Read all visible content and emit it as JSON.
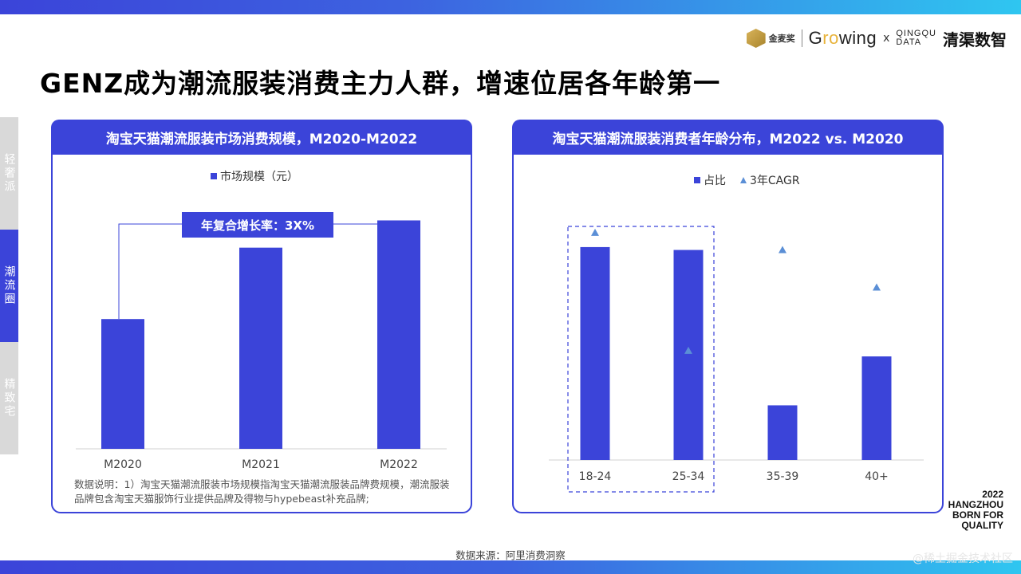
{
  "page": {
    "title": "GENZ成为潮流服装消费主力人群，增速位居各年龄第一",
    "source": "数据来源：阿里消费洞察",
    "city_mark": [
      "2022",
      "HANGZHOU",
      "BORN FOR",
      "QUALITY"
    ],
    "watermark": "@稀土掘金技术社区"
  },
  "logos": {
    "jinmaijiang": "金麦奖",
    "growing_prefix": "G",
    "growing_accent": "ro",
    "growing_suffix": "wing",
    "x": "x",
    "qq_line1": "QINGQU",
    "qq_line2": "DATA",
    "qq_name": "清渠数智"
  },
  "side_tabs": [
    {
      "label": "轻奢派",
      "active": false
    },
    {
      "label": "潮流圈",
      "active": true
    },
    {
      "label": "精致宅",
      "active": false
    }
  ],
  "colors": {
    "brand": "#3b44d9",
    "triangle": "#5b8fd6",
    "tab_inactive": "#d9d9d9"
  },
  "left_panel": {
    "header": "淘宝天猫潮流服装市场消费规模，M2020-M2022",
    "legend": "市场规模（元）",
    "cagr_label": "年复合增长率：3X%",
    "note": "数据说明：1）淘宝天猫潮流服装市场规模指淘宝天猫潮流服装品牌费规模，潮流服装品牌包含淘宝天猫服饰行业提供品牌及得物与hypebeast补充品牌;"
  },
  "right_panel": {
    "header": "淘宝天猫潮流服装消费者年龄分布，M2022 vs. M2020",
    "legend_bar": "占比",
    "legend_tri": "3年CAGR"
  },
  "chart_data": [
    {
      "type": "bar",
      "title": "淘宝天猫潮流服装市场消费规模，M2020-M2022",
      "categories": [
        "M2020",
        "M2021",
        "M2022"
      ],
      "series": [
        {
          "name": "市场规模（元）",
          "values": [
            100,
            155,
            176
          ]
        }
      ],
      "ylim": [
        0,
        250
      ],
      "legend": "top-center",
      "grid": false
    },
    {
      "type": "bar",
      "title": "淘宝天猫潮流服装消费者年龄分布，M2022 vs. M2020",
      "categories": [
        "18-24",
        "25-34",
        "35-39",
        "40+"
      ],
      "series": [
        {
          "name": "占比",
          "values": [
            37,
            36.5,
            9.5,
            18
          ]
        },
        {
          "name": "3年CAGR",
          "type": "scatter",
          "marker": "triangle",
          "values": [
            39.5,
            19,
            36.5,
            30
          ]
        }
      ],
      "ylim": [
        0,
        55
      ],
      "highlight": [
        "18-24",
        "25-34"
      ],
      "legend": "top-center",
      "grid": false
    }
  ]
}
